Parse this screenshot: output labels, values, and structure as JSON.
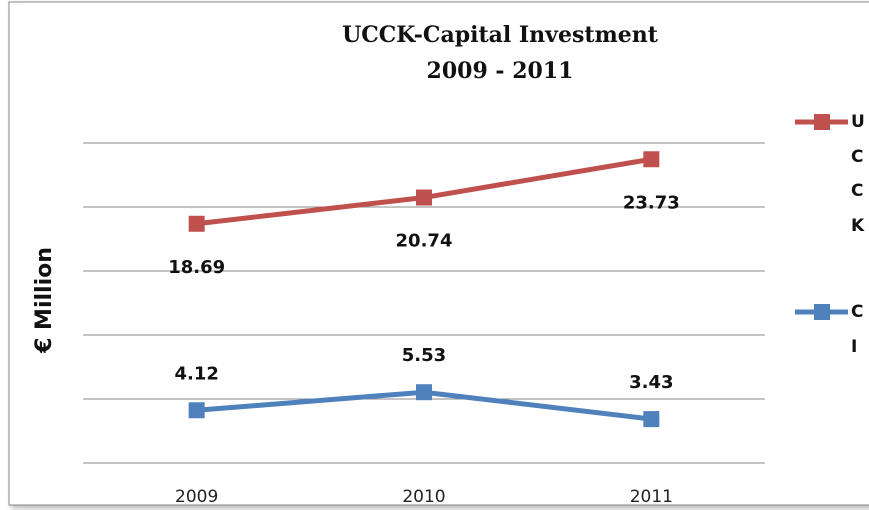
{
  "chart_data": {
    "type": "line",
    "title": "UCCK-Capital Investment",
    "subtitle": "2009 - 2011",
    "ylabel": "€ Million",
    "categories": [
      "2009",
      "2010",
      "2011"
    ],
    "series": [
      {
        "name": "UCCK",
        "color": "#c0504d",
        "values": [
          18.69,
          20.74,
          23.73
        ]
      },
      {
        "name": "CI",
        "color": "#4f81bd",
        "values": [
          4.12,
          5.53,
          3.43
        ]
      }
    ],
    "ylim": [
      0,
      30
    ],
    "yticks": [
      0,
      5,
      10,
      15,
      20,
      25,
      30
    ],
    "grid": true
  }
}
